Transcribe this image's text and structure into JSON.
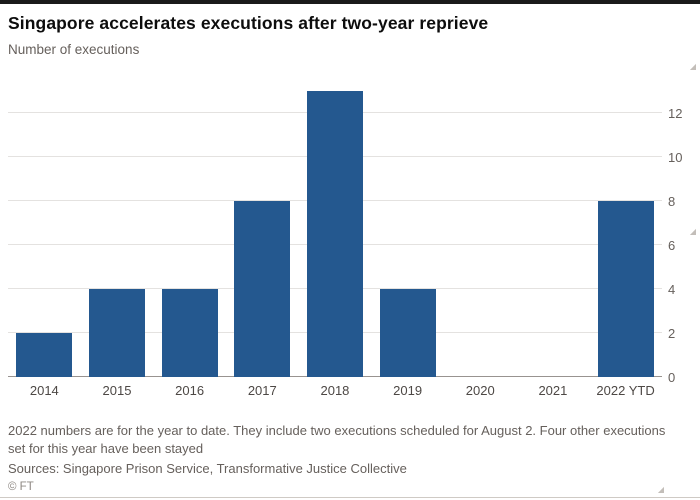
{
  "header": {
    "title": "Singapore accelerates executions after two-year reprieve",
    "subtitle": "Number of executions"
  },
  "chart_data": {
    "type": "bar",
    "categories": [
      "2014",
      "2015",
      "2016",
      "2017",
      "2018",
      "2019",
      "2020",
      "2021",
      "2022 YTD"
    ],
    "values": [
      2,
      4,
      4,
      8,
      13,
      4,
      0,
      0,
      8
    ],
    "title": "Singapore accelerates executions after two-year reprieve",
    "subtitle": "Number of executions",
    "xlabel": "",
    "ylabel": "Number of executions",
    "ylim": [
      0,
      13
    ],
    "yticks": [
      0,
      2,
      4,
      6,
      8,
      10,
      12
    ],
    "y_axis_position": "right",
    "grid": true,
    "legend": "none",
    "bar_color": "#24588f"
  },
  "footer": {
    "note": "2022 numbers are for the year to date. They include two executions scheduled for August 2. Four other executions set for this year have been stayed",
    "sources": "Sources: Singapore Prison Service, Transformative Justice Collective",
    "ft_mark": "© FT"
  },
  "icons": {
    "resize_handle": "◢"
  },
  "colors": {
    "bar": "#24588f",
    "top_rule": "#1a1a1a",
    "text_muted": "#66605c"
  }
}
